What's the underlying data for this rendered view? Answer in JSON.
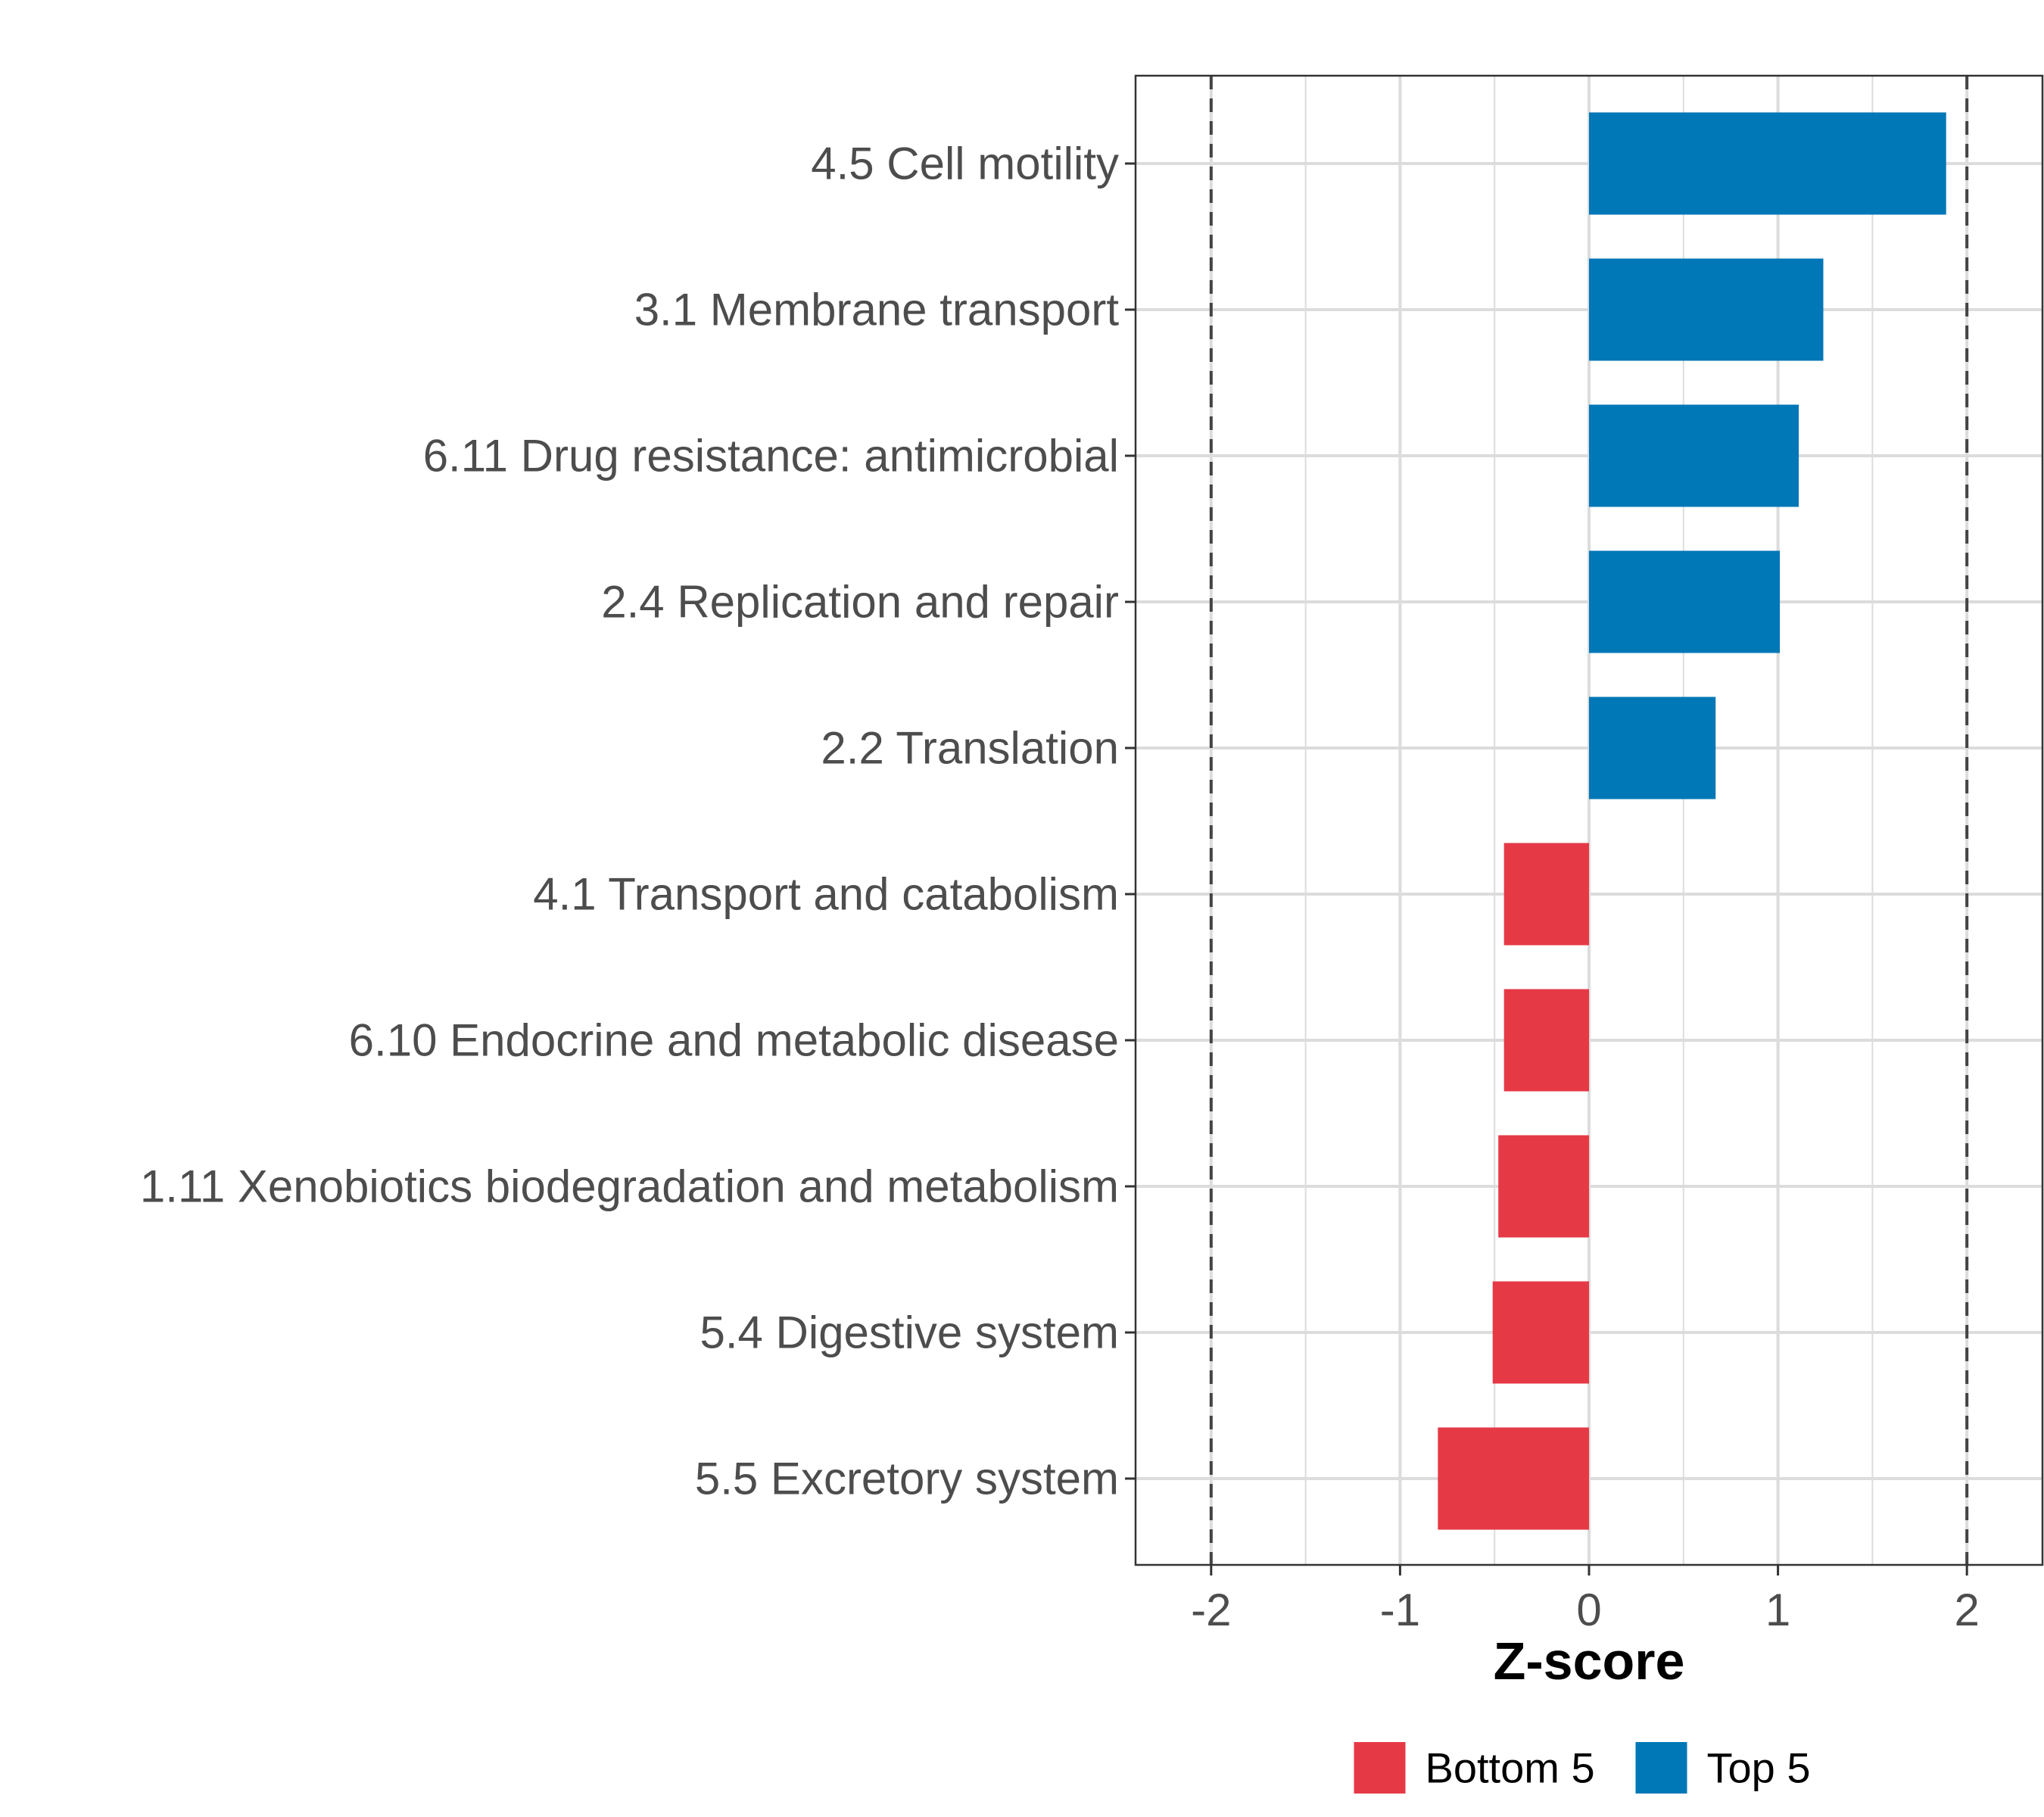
{
  "chart_data": {
    "type": "bar",
    "orientation": "horizontal",
    "title": "",
    "xlabel": "Z-score",
    "ylabel": "",
    "xlim": [
      -2.4,
      2.4
    ],
    "x_ticks": [
      -2,
      -1,
      0,
      1,
      2
    ],
    "x_tick_labels": [
      "-2",
      "-1",
      "0",
      "1",
      "2"
    ],
    "reference_lines": [
      -2,
      2
    ],
    "grid": true,
    "categories": [
      "4.5 Cell motility",
      "3.1 Membrane transport",
      "6.11 Drug resistance: antimicrobial",
      "2.4 Replication and repair",
      "2.2 Translation",
      "4.1 Transport and catabolism",
      "6.10 Endocrine and metabolic disease",
      "1.11 Xenobiotics biodegradation and metabolism",
      "5.4 Digestive system",
      "5.5 Excretory system"
    ],
    "values": [
      1.89,
      1.24,
      1.11,
      1.01,
      0.67,
      -0.45,
      -0.45,
      -0.48,
      -0.51,
      -0.8
    ],
    "groups": [
      "Top 5",
      "Top 5",
      "Top 5",
      "Top 5",
      "Top 5",
      "Bottom 5",
      "Bottom 5",
      "Bottom 5",
      "Bottom 5",
      "Bottom 5"
    ],
    "legend": {
      "position": "bottom",
      "entries": [
        {
          "label": "Bottom 5",
          "color": "#e63946"
        },
        {
          "label": "Top 5",
          "color": "#0077b6"
        }
      ]
    },
    "colors": {
      "Top 5": "#0077b6",
      "Bottom 5": "#e63946"
    }
  }
}
